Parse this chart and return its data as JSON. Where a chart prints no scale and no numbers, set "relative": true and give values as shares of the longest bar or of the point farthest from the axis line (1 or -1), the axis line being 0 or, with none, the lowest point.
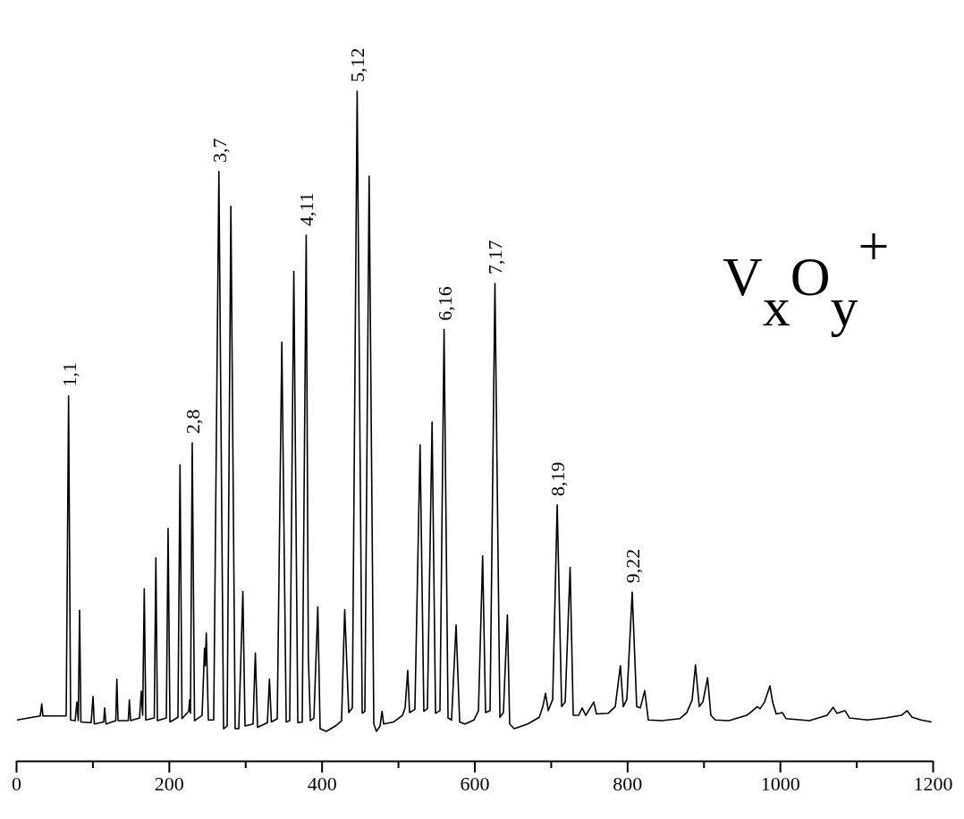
{
  "chart_data": {
    "type": "line",
    "relative": true,
    "color": "#000000",
    "xlim": [
      0,
      1200
    ],
    "xticks": [
      0,
      {
        "value": 100,
        "label": null
      },
      200,
      {
        "value": 300,
        "label": null
      },
      400,
      {
        "value": 500,
        "label": null
      },
      600,
      {
        "value": 700,
        "label": null
      },
      800,
      {
        "value": 900,
        "label": null
      },
      1000,
      {
        "value": 1100,
        "label": null
      },
      1200
    ],
    "tick_labels": "x",
    "grid": false,
    "marker": "none",
    "line_style": "solid",
    "x": [
      1.2,
      31.6,
      33.6,
      35.1,
      65.6,
      68.7,
      71.4,
      77.3,
      79.6,
      81.4,
      83.1,
      84.9,
      98.3,
      100.7,
      102.4,
      114.7,
      115.9,
      117.7,
      130.5,
      131.9,
      133.5,
      146.9,
      148.3,
      149.9,
      161.6,
      163.9,
      165.7,
      167.8,
      169.8,
      180.9,
      183.0,
      185.0,
      196.7,
      199.0,
      201.4,
      211.9,
      214.6,
      217.2,
      226.0,
      227.1,
      228.3,
      230.6,
      233.6,
      243.5,
      246.7,
      247.7,
      249.0,
      251.7,
      258.7,
      265.5,
      271.6,
      276.3,
      281.2,
      286.8,
      291.5,
      296.9,
      299.7,
      310.2,
      313.2,
      316.1,
      329.0,
      331.7,
      334.2,
      341.9,
      347.9,
      353.6,
      358.2,
      363.6,
      368.8,
      374.6,
      379.8,
      382.6,
      385.2,
      389.9,
      395.0,
      398.0,
      406.2,
      418.0,
      426.1,
      430.2,
      435.5,
      440.2,
      446.5,
      453.1,
      456.6,
      462.2,
      468.3,
      471.8,
      476.5,
      479.1,
      481.2,
      494.0,
      505.8,
      509.3,
      512.7,
      515.1,
      522.1,
      528.9,
      533.8,
      538.5,
      544.6,
      549.1,
      554.9,
      560.3,
      565.5,
      570.1,
      576.0,
      580.7,
      587.7,
      599.4,
      605.3,
      610.8,
      614.6,
      620.5,
      626.9,
      633.4,
      638.0,
      643.2,
      646.2,
      652.1,
      669.7,
      684.9,
      689.6,
      693.1,
      696.7,
      702.5,
      708.4,
      714.2,
      718.9,
      725.3,
      729.4,
      736.4,
      741.1,
      745.8,
      756.3,
      759.8,
      775.0,
      784.4,
      791.1,
      794.9,
      799.6,
      806.6,
      812.5,
      817.2,
      823.0,
      827.7,
      845.3,
      868.7,
      878.0,
      885.1,
      889.4,
      894.4,
      899.1,
      905.3,
      909.6,
      915.5,
      933.1,
      956.5,
      966.3,
      970.2,
      974.0,
      979.9,
      986.9,
      990.4,
      995.1,
      1003.3,
      1008.0,
      1038.4,
      1061.8,
      1069.7,
      1074.7,
      1085.3,
      1091.1,
      1114.5,
      1137.9,
      1159.0,
      1166.4,
      1173.1,
      1184.8,
      1198.5
    ],
    "values": [
      0.061,
      0.067,
      0.085,
      0.067,
      0.067,
      0.545,
      0.061,
      0.06,
      0.088,
      0.06,
      0.225,
      0.058,
      0.057,
      0.096,
      0.055,
      0.058,
      0.079,
      0.055,
      0.06,
      0.122,
      0.06,
      0.06,
      0.091,
      0.06,
      0.064,
      0.104,
      0.068,
      0.257,
      0.061,
      0.064,
      0.303,
      0.06,
      0.064,
      0.347,
      0.058,
      0.065,
      0.442,
      0.063,
      0.074,
      0.091,
      0.071,
      0.475,
      0.06,
      0.068,
      0.168,
      0.142,
      0.191,
      0.061,
      0.061,
      0.88,
      0.048,
      0.052,
      0.828,
      0.048,
      0.048,
      0.253,
      0.052,
      0.055,
      0.161,
      0.05,
      0.057,
      0.122,
      0.058,
      0.063,
      0.625,
      0.058,
      0.06,
      0.731,
      0.057,
      0.058,
      0.785,
      0.155,
      0.06,
      0.064,
      0.23,
      0.048,
      0.044,
      0.052,
      0.06,
      0.226,
      0.072,
      0.079,
      1,
      0.071,
      0.074,
      0.873,
      0.055,
      0.044,
      0.052,
      0.074,
      0.055,
      0.058,
      0.068,
      0.079,
      0.135,
      0.072,
      0.077,
      0.472,
      0.074,
      0.078,
      0.506,
      0.071,
      0.075,
      0.644,
      0.064,
      0.061,
      0.203,
      0.058,
      0.055,
      0.061,
      0.075,
      0.306,
      0.072,
      0.075,
      0.713,
      0.065,
      0.072,
      0.218,
      0.055,
      0.048,
      0.055,
      0.065,
      0.081,
      0.101,
      0.075,
      0.092,
      0.382,
      0.081,
      0.088,
      0.289,
      0.068,
      0.068,
      0.079,
      0.068,
      0.088,
      0.07,
      0.071,
      0.081,
      0.142,
      0.081,
      0.092,
      0.252,
      0.081,
      0.079,
      0.105,
      0.061,
      0.06,
      0.063,
      0.072,
      0.091,
      0.143,
      0.081,
      0.088,
      0.124,
      0.068,
      0.061,
      0.06,
      0.068,
      0.077,
      0.081,
      0.078,
      0.088,
      0.112,
      0.088,
      0.07,
      0.072,
      0.063,
      0.06,
      0.068,
      0.08,
      0.071,
      0.075,
      0.064,
      0.061,
      0.064,
      0.068,
      0.075,
      0.065,
      0.061,
      0.058
    ],
    "annotations": [
      {
        "text": "1,1",
        "x": 68.7,
        "y": 0.545
      },
      {
        "text": "2,8",
        "x": 230.6,
        "y": 0.475
      },
      {
        "text": "3,7",
        "x": 265.5,
        "y": 0.88
      },
      {
        "text": "4,11",
        "x": 379.8,
        "y": 0.785
      },
      {
        "text": "5,12",
        "x": 446.5,
        "y": 1
      },
      {
        "text": "6,16",
        "x": 560.3,
        "y": 0.644
      },
      {
        "text": "7,17",
        "x": 626.9,
        "y": 0.713
      },
      {
        "text": "8,19",
        "x": 708.4,
        "y": 0.382
      },
      {
        "text": "9,22",
        "x": 806.6,
        "y": 0.252
      },
      "V$_{x}$O$_{y}$$^{+}$"
    ]
  }
}
